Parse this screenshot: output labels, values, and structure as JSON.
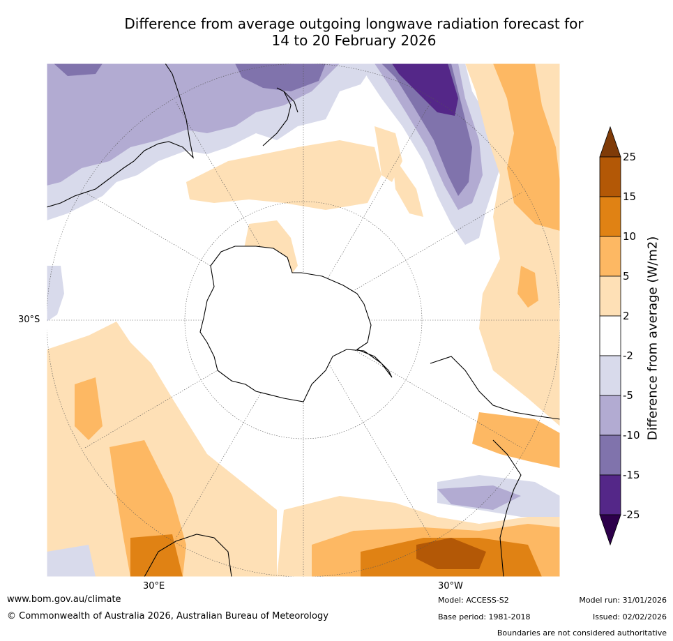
{
  "title": {
    "line1": "Difference from average outgoing longwave radiation forecast for",
    "line2": "14 to 20 February 2026"
  },
  "map": {
    "projection": "south polar stereographic",
    "lat_label": "30°S",
    "lon_labels": {
      "east": "30°E",
      "west": "30°W"
    }
  },
  "legend": {
    "title": "Difference from average (W/m2)",
    "ticks": [
      "25",
      "15",
      "10",
      "5",
      "2",
      "-2",
      "-5",
      "-10",
      "-15",
      "-25"
    ],
    "bins": [
      {
        "range": "> 25",
        "color": "#7f3b08"
      },
      {
        "range": "15 to 25",
        "color": "#b35806"
      },
      {
        "range": "10 to 15",
        "color": "#e08214"
      },
      {
        "range": "5 to 10",
        "color": "#fdb863"
      },
      {
        "range": "2 to 5",
        "color": "#fee0b6"
      },
      {
        "range": "-2 to 2",
        "color": "#ffffff"
      },
      {
        "range": "-5 to -2",
        "color": "#d8daeb"
      },
      {
        "range": "-10 to -5",
        "color": "#b2abd2"
      },
      {
        "range": "-15 to -10",
        "color": "#8073ac"
      },
      {
        "range": "-25 to -15",
        "color": "#542788"
      },
      {
        "range": "< -25",
        "color": "#2d004b"
      }
    ]
  },
  "footer": {
    "url": "www.bom.gov.au/climate",
    "copyright": "© Commonwealth of Australia 2026, Australian Bureau of Meteorology",
    "model": "Model: ACCESS-S2",
    "base_period": "Base period: 1981-2018",
    "model_run": "Model run: 31/01/2026",
    "issued": "Issued: 02/02/2026",
    "disclaimer": "Boundaries are not considered authoritative"
  }
}
